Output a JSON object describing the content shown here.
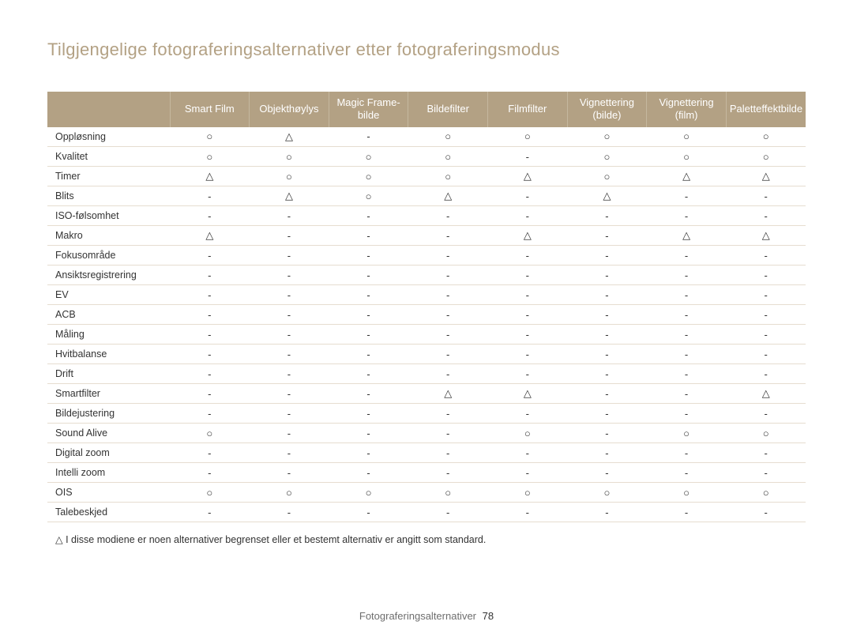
{
  "title": "Tilgjengelige fotograferingsalternativer etter fotograferingsmodus",
  "columns": [
    "Smart Film",
    "Objekthøylys",
    "Magic Frame-bilde",
    "Bildefilter",
    "Filmfilter",
    "Vignettering (bilde)",
    "Vignettering (film)",
    "Paletteffektbilde"
  ],
  "symbols": {
    "O": "○",
    "T": "△",
    "D": "-"
  },
  "rows": [
    {
      "label": "Oppløsning",
      "cells": [
        "O",
        "T",
        "D",
        "O",
        "O",
        "O",
        "O",
        "O"
      ]
    },
    {
      "label": "Kvalitet",
      "cells": [
        "O",
        "O",
        "O",
        "O",
        "D",
        "O",
        "O",
        "O"
      ]
    },
    {
      "label": "Timer",
      "cells": [
        "T",
        "O",
        "O",
        "O",
        "T",
        "O",
        "T",
        "T"
      ]
    },
    {
      "label": "Blits",
      "cells": [
        "D",
        "T",
        "O",
        "T",
        "D",
        "T",
        "D",
        "D"
      ]
    },
    {
      "label": "ISO-følsomhet",
      "cells": [
        "D",
        "D",
        "D",
        "D",
        "D",
        "D",
        "D",
        "D"
      ]
    },
    {
      "label": "Makro",
      "cells": [
        "T",
        "D",
        "D",
        "D",
        "T",
        "D",
        "T",
        "T"
      ]
    },
    {
      "label": "Fokusområde",
      "cells": [
        "D",
        "D",
        "D",
        "D",
        "D",
        "D",
        "D",
        "D"
      ]
    },
    {
      "label": "Ansiktsregistrering",
      "cells": [
        "D",
        "D",
        "D",
        "D",
        "D",
        "D",
        "D",
        "D"
      ]
    },
    {
      "label": "EV",
      "cells": [
        "D",
        "D",
        "D",
        "D",
        "D",
        "D",
        "D",
        "D"
      ]
    },
    {
      "label": "ACB",
      "cells": [
        "D",
        "D",
        "D",
        "D",
        "D",
        "D",
        "D",
        "D"
      ]
    },
    {
      "label": "Måling",
      "cells": [
        "D",
        "D",
        "D",
        "D",
        "D",
        "D",
        "D",
        "D"
      ]
    },
    {
      "label": "Hvitbalanse",
      "cells": [
        "D",
        "D",
        "D",
        "D",
        "D",
        "D",
        "D",
        "D"
      ]
    },
    {
      "label": "Drift",
      "cells": [
        "D",
        "D",
        "D",
        "D",
        "D",
        "D",
        "D",
        "D"
      ]
    },
    {
      "label": "Smartfilter",
      "cells": [
        "D",
        "D",
        "D",
        "T",
        "T",
        "D",
        "D",
        "T"
      ]
    },
    {
      "label": "Bildejustering",
      "cells": [
        "D",
        "D",
        "D",
        "D",
        "D",
        "D",
        "D",
        "D"
      ]
    },
    {
      "label": "Sound Alive",
      "cells": [
        "O",
        "D",
        "D",
        "D",
        "O",
        "D",
        "O",
        "O"
      ]
    },
    {
      "label": "Digital zoom",
      "cells": [
        "D",
        "D",
        "D",
        "D",
        "D",
        "D",
        "D",
        "D"
      ]
    },
    {
      "label": "Intelli zoom",
      "cells": [
        "D",
        "D",
        "D",
        "D",
        "D",
        "D",
        "D",
        "D"
      ]
    },
    {
      "label": "OIS",
      "cells": [
        "O",
        "O",
        "O",
        "O",
        "O",
        "O",
        "O",
        "O"
      ]
    },
    {
      "label": "Talebeskjed",
      "cells": [
        "D",
        "D",
        "D",
        "D",
        "D",
        "D",
        "D",
        "D"
      ]
    }
  ],
  "note_prefix_symbol": "T",
  "note_text": "I disse modiene er noen alternativer begrenset eller et bestemt alternativ er angitt som standard.",
  "footer": {
    "section": "Fotograferingsalternativer",
    "page": "78"
  },
  "colors": {
    "header_bg": "#b3a184",
    "header_text": "#ffffff",
    "row_border": "#e6ddd0",
    "title_color": "#b3a184",
    "body_text": "#333333"
  }
}
